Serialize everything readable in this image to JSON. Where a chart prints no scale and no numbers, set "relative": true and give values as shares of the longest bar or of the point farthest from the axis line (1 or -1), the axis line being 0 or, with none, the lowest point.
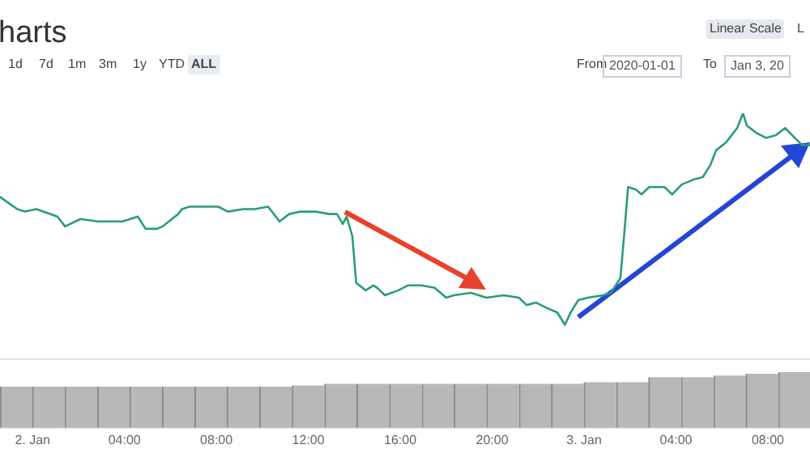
{
  "chart_data": [
    {
      "type": "line",
      "title": "harts",
      "relative": true,
      "color": "#2a9d76",
      "marker": "none",
      "line_style": "solid",
      "legend": false,
      "annotations": [
        "1d",
        "7d",
        "1m",
        "3m",
        "1y",
        "YTD",
        "ALL",
        "Linear Scale",
        "L",
        "From",
        "2020-01-01",
        "To",
        "Jan 3, 20"
      ],
      "xlim": [
        "2020-01-01T22:35",
        "2020-01-03T09:50"
      ],
      "x": [
        "2020-01-01T22:35",
        "2020-01-01T23:20",
        "2020-01-01T23:40",
        "2020-01-02T00:10",
        "2020-01-02T01:05",
        "2020-01-02T01:25",
        "2020-01-02T02:05",
        "2020-01-02T02:50",
        "2020-01-02T03:30",
        "2020-01-02T03:55",
        "2020-01-02T04:35",
        "2020-01-02T04:55",
        "2020-01-02T05:25",
        "2020-01-02T05:40",
        "2020-01-02T06:20",
        "2020-01-02T06:30",
        "2020-01-02T06:50",
        "2020-01-02T07:25",
        "2020-01-02T08:05",
        "2020-01-02T08:30",
        "2020-01-02T09:10",
        "2020-01-02T09:40",
        "2020-01-02T10:15",
        "2020-01-02T10:45",
        "2020-01-02T11:10",
        "2020-01-02T11:40",
        "2020-01-02T12:20",
        "2020-01-02T12:55",
        "2020-01-02T13:15",
        "2020-01-02T13:30",
        "2020-01-02T13:40",
        "2020-01-02T13:55",
        "2020-01-02T14:05",
        "2020-01-02T14:30",
        "2020-01-02T14:50",
        "2020-01-02T15:00",
        "2020-01-02T15:20",
        "2020-01-02T15:55",
        "2020-01-02T16:20",
        "2020-01-02T16:55",
        "2020-01-02T17:30",
        "2020-01-02T18:00",
        "2020-01-02T18:20",
        "2020-01-02T19:05",
        "2020-01-02T19:45",
        "2020-01-02T20:30",
        "2020-01-02T21:10",
        "2020-01-02T21:30",
        "2020-01-02T21:55",
        "2020-01-02T22:20",
        "2020-01-02T22:50",
        "2020-01-02T23:10",
        "2020-01-02T23:25",
        "2020-01-02T23:45",
        "2020-01-03T00:10",
        "2020-01-03T00:50",
        "2020-01-03T01:10",
        "2020-01-03T01:35",
        "2020-01-03T01:45",
        "2020-01-03T01:55",
        "2020-01-03T02:15",
        "2020-01-03T02:30",
        "2020-01-03T02:50",
        "2020-01-03T03:30",
        "2020-01-03T03:50",
        "2020-01-03T04:15",
        "2020-01-03T04:45",
        "2020-01-03T05:10",
        "2020-01-03T05:30",
        "2020-01-03T05:45",
        "2020-01-03T06:10",
        "2020-01-03T06:25",
        "2020-01-03T06:40",
        "2020-01-03T06:55",
        "2020-01-03T07:05",
        "2020-01-03T07:30",
        "2020-01-03T07:55",
        "2020-01-03T08:20",
        "2020-01-03T08:45",
        "2020-01-03T09:10",
        "2020-01-03T09:30",
        "2020-01-03T09:50"
      ],
      "values": [
        0.66,
        0.61,
        0.6,
        0.61,
        0.58,
        0.54,
        0.57,
        0.56,
        0.56,
        0.56,
        0.58,
        0.53,
        0.53,
        0.54,
        0.59,
        0.61,
        0.62,
        0.62,
        0.62,
        0.6,
        0.61,
        0.61,
        0.62,
        0.56,
        0.59,
        0.6,
        0.6,
        0.59,
        0.59,
        0.55,
        0.58,
        0.5,
        0.31,
        0.28,
        0.3,
        0.29,
        0.26,
        0.28,
        0.3,
        0.3,
        0.29,
        0.25,
        0.26,
        0.27,
        0.25,
        0.26,
        0.25,
        0.22,
        0.23,
        0.21,
        0.19,
        0.14,
        0.19,
        0.24,
        0.25,
        0.26,
        0.27,
        0.33,
        0.51,
        0.7,
        0.69,
        0.67,
        0.7,
        0.7,
        0.67,
        0.71,
        0.73,
        0.74,
        0.79,
        0.85,
        0.88,
        0.91,
        0.94,
        1,
        0.95,
        0.92,
        0.9,
        0.91,
        0.94,
        0.9,
        0.87,
        0.87
      ]
    },
    {
      "type": "bar",
      "relative": true,
      "color": "#b8b8b8",
      "legend": false,
      "xlim": [
        "2020-01-01T22:35",
        "2020-01-03T09:50"
      ],
      "xticks": [
        {
          "value": "2020-01-02T00:00",
          "label": "2. Jan"
        },
        {
          "value": "2020-01-02T04:00",
          "label": "04:00"
        },
        {
          "value": "2020-01-02T08:00",
          "label": "08:00"
        },
        {
          "value": "2020-01-02T12:00",
          "label": "12:00"
        },
        {
          "value": "2020-01-02T16:00",
          "label": "16:00"
        },
        {
          "value": "2020-01-02T20:00",
          "label": "20:00"
        },
        {
          "value": "2020-01-03T00:00",
          "label": "3. Jan"
        },
        {
          "value": "2020-01-03T04:00",
          "label": "04:00"
        },
        {
          "value": "2020-01-03T08:00",
          "label": "08:00"
        }
      ],
      "x": [
        "2020-01-01T23:18",
        "2020-01-02T00:42",
        "2020-01-02T02:07",
        "2020-01-02T03:32",
        "2020-01-02T04:56",
        "2020-01-02T06:21",
        "2020-01-02T07:46",
        "2020-01-02T09:10",
        "2020-01-02T10:35",
        "2020-01-02T12:00",
        "2020-01-02T13:25",
        "2020-01-02T14:49",
        "2020-01-02T16:14",
        "2020-01-02T17:39",
        "2020-01-02T19:03",
        "2020-01-02T20:28",
        "2020-01-02T21:53",
        "2020-01-02T23:17",
        "2020-01-03T00:42",
        "2020-01-03T02:07",
        "2020-01-03T03:31",
        "2020-01-03T04:56",
        "2020-01-03T06:21",
        "2020-01-03T07:45",
        "2020-01-03T09:10"
      ],
      "values": [
        0.74,
        0.74,
        0.74,
        0.74,
        0.74,
        0.74,
        0.74,
        0.74,
        0.74,
        0.76,
        0.79,
        0.79,
        0.79,
        0.79,
        0.79,
        0.79,
        0.79,
        0.79,
        0.82,
        0.82,
        0.91,
        0.91,
        0.94,
        0.97,
        1
      ]
    }
  ]
}
